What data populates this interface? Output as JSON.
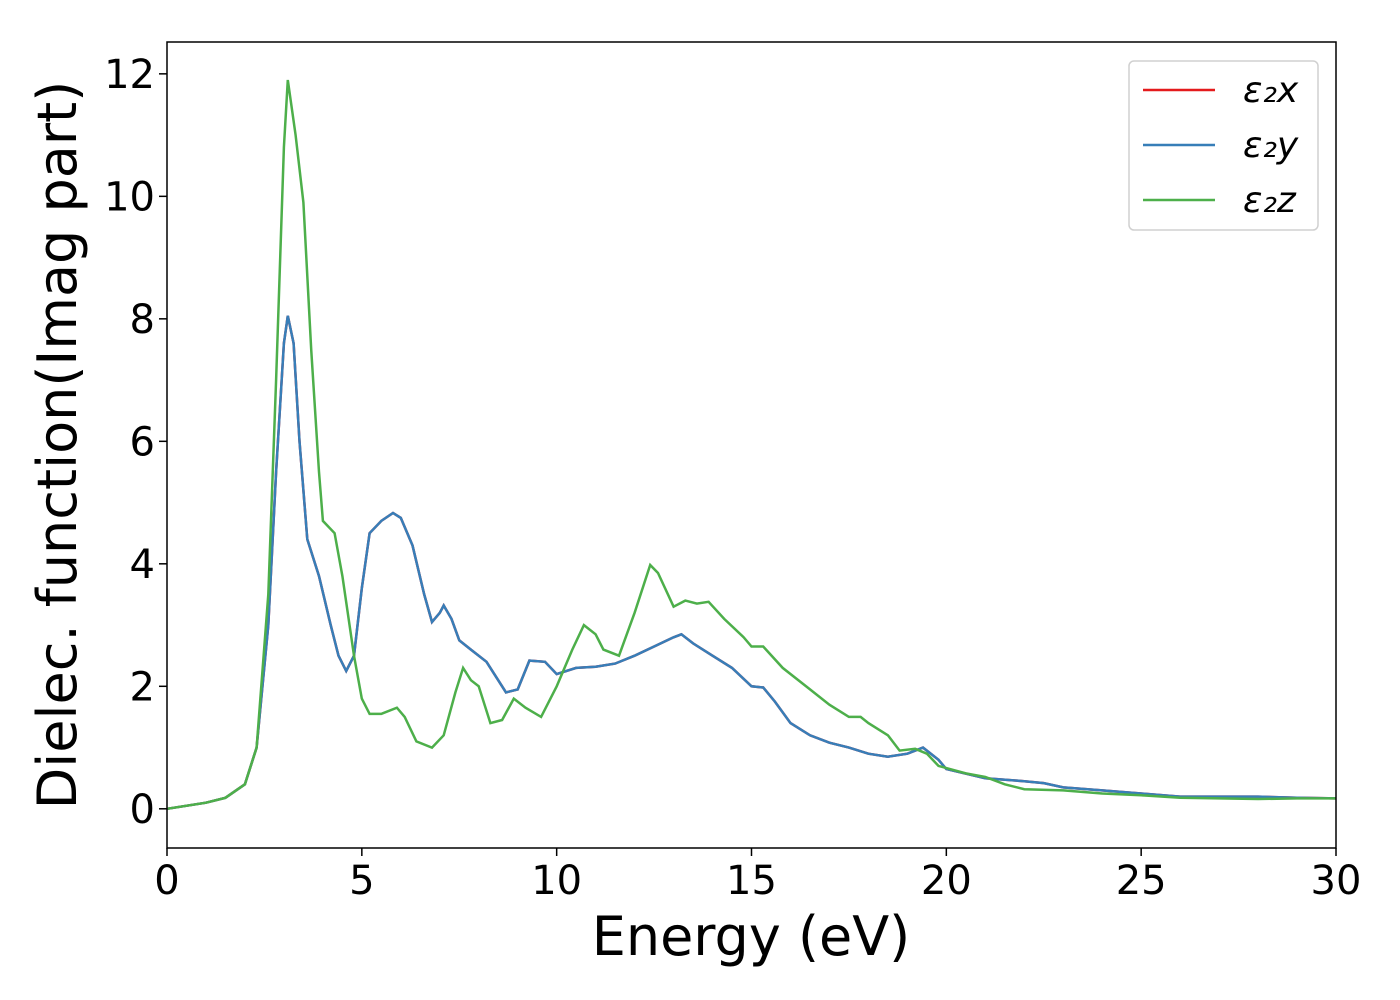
{
  "chart_data": {
    "type": "line",
    "xlabel": "Energy (eV)",
    "ylabel": "Dielec. function(Imag part)",
    "xlim": [
      0,
      30
    ],
    "ylim": [
      -0.64,
      12.52
    ],
    "xticks": [
      0,
      5,
      10,
      15,
      20,
      25,
      30
    ],
    "yticks": [
      0,
      2,
      4,
      6,
      8,
      10,
      12
    ],
    "legend": "upper right",
    "series": [
      {
        "name": "ε₂x",
        "color": "#e41a1c",
        "x": [
          0,
          1,
          1.5,
          2,
          2.3,
          2.6,
          2.8,
          3.0,
          3.1,
          3.25,
          3.4,
          3.6,
          3.9,
          4.2,
          4.4,
          4.6,
          4.8,
          5.0,
          5.2,
          5.5,
          5.8,
          6.0,
          6.3,
          6.6,
          6.8,
          7.0,
          7.1,
          7.3,
          7.5,
          7.8,
          8.2,
          8.5,
          8.7,
          9.0,
          9.3,
          9.7,
          10.0,
          10.5,
          11.0,
          11.5,
          12.0,
          12.5,
          13.0,
          13.2,
          13.5,
          14.0,
          14.5,
          15.0,
          15.3,
          15.6,
          16.0,
          16.5,
          17.0,
          17.5,
          18.0,
          18.5,
          19.0,
          19.4,
          19.8,
          20.0,
          21,
          22,
          22.5,
          23,
          24,
          25,
          26,
          27,
          28,
          29,
          30
        ],
        "values": [
          0,
          0.1,
          0.18,
          0.4,
          1.0,
          3,
          5.5,
          7.6,
          8.05,
          7.6,
          6,
          4.4,
          3.8,
          3,
          2.5,
          2.25,
          2.5,
          3.6,
          4.5,
          4.7,
          4.83,
          4.75,
          4.3,
          3.5,
          3.05,
          3.2,
          3.32,
          3.1,
          2.75,
          2.6,
          2.4,
          2.1,
          1.9,
          1.95,
          2.42,
          2.4,
          2.2,
          2.3,
          2.32,
          2.37,
          2.5,
          2.65,
          2.8,
          2.85,
          2.7,
          2.5,
          2.3,
          2.0,
          1.98,
          1.75,
          1.4,
          1.2,
          1.08,
          1.0,
          0.9,
          0.85,
          0.9,
          1.0,
          0.8,
          0.65,
          0.5,
          0.45,
          0.42,
          0.35,
          0.3,
          0.25,
          0.2,
          0.2,
          0.2,
          0.18,
          0.17
        ]
      },
      {
        "name": "ε₂y",
        "color": "#377eb8",
        "x": [
          0,
          1,
          1.5,
          2,
          2.3,
          2.6,
          2.8,
          3.0,
          3.1,
          3.25,
          3.4,
          3.6,
          3.9,
          4.2,
          4.4,
          4.6,
          4.8,
          5.0,
          5.2,
          5.5,
          5.8,
          6.0,
          6.3,
          6.6,
          6.8,
          7.0,
          7.1,
          7.3,
          7.5,
          7.8,
          8.2,
          8.5,
          8.7,
          9.0,
          9.3,
          9.7,
          10.0,
          10.5,
          11.0,
          11.5,
          12.0,
          12.5,
          13.0,
          13.2,
          13.5,
          14.0,
          14.5,
          15.0,
          15.3,
          15.6,
          16.0,
          16.5,
          17.0,
          17.5,
          18.0,
          18.5,
          19.0,
          19.4,
          19.8,
          20.0,
          21,
          22,
          22.5,
          23,
          24,
          25,
          26,
          27,
          28,
          29,
          30
        ],
        "values": [
          0,
          0.1,
          0.18,
          0.4,
          1.0,
          3,
          5.5,
          7.6,
          8.05,
          7.6,
          6,
          4.4,
          3.8,
          3,
          2.5,
          2.25,
          2.5,
          3.6,
          4.5,
          4.7,
          4.83,
          4.75,
          4.3,
          3.5,
          3.05,
          3.2,
          3.32,
          3.1,
          2.75,
          2.6,
          2.4,
          2.1,
          1.9,
          1.95,
          2.42,
          2.4,
          2.2,
          2.3,
          2.32,
          2.37,
          2.5,
          2.65,
          2.8,
          2.85,
          2.7,
          2.5,
          2.3,
          2.0,
          1.98,
          1.75,
          1.4,
          1.2,
          1.08,
          1.0,
          0.9,
          0.85,
          0.9,
          1.0,
          0.8,
          0.65,
          0.5,
          0.45,
          0.42,
          0.35,
          0.3,
          0.25,
          0.2,
          0.2,
          0.2,
          0.18,
          0.17
        ]
      },
      {
        "name": "ε₂z",
        "color": "#4daf4a",
        "x": [
          0,
          1,
          1.5,
          2,
          2.3,
          2.6,
          2.8,
          3.0,
          3.1,
          3.3,
          3.5,
          3.7,
          3.9,
          4.0,
          4.3,
          4.5,
          4.8,
          5.0,
          5.2,
          5.5,
          5.9,
          6.1,
          6.4,
          6.8,
          7.1,
          7.4,
          7.6,
          7.8,
          8.0,
          8.3,
          8.6,
          8.9,
          9.2,
          9.6,
          10.0,
          10.4,
          10.7,
          11.0,
          11.2,
          11.6,
          12.0,
          12.4,
          12.6,
          13.0,
          13.3,
          13.6,
          13.9,
          14.3,
          14.8,
          15.0,
          15.3,
          15.8,
          16.5,
          17.0,
          17.5,
          17.8,
          18.0,
          18.5,
          18.8,
          19.2,
          19.5,
          19.8,
          20.5,
          21,
          21.5,
          22,
          23,
          24,
          25,
          26,
          27,
          28,
          29,
          30
        ],
        "values": [
          0,
          0.1,
          0.18,
          0.4,
          1.0,
          3.5,
          7,
          10.8,
          11.9,
          11,
          9.9,
          7.5,
          5.5,
          4.7,
          4.5,
          3.8,
          2.5,
          1.8,
          1.55,
          1.55,
          1.65,
          1.5,
          1.1,
          1.0,
          1.2,
          1.9,
          2.3,
          2.1,
          2.0,
          1.4,
          1.45,
          1.8,
          1.65,
          1.5,
          2.0,
          2.6,
          3.0,
          2.85,
          2.6,
          2.5,
          3.2,
          3.98,
          3.85,
          3.3,
          3.4,
          3.35,
          3.38,
          3.1,
          2.8,
          2.65,
          2.65,
          2.3,
          1.95,
          1.7,
          1.5,
          1.5,
          1.4,
          1.2,
          0.95,
          0.98,
          0.9,
          0.7,
          0.58,
          0.52,
          0.4,
          0.32,
          0.3,
          0.25,
          0.22,
          0.18,
          0.17,
          0.16,
          0.17,
          0.17
        ]
      }
    ]
  }
}
